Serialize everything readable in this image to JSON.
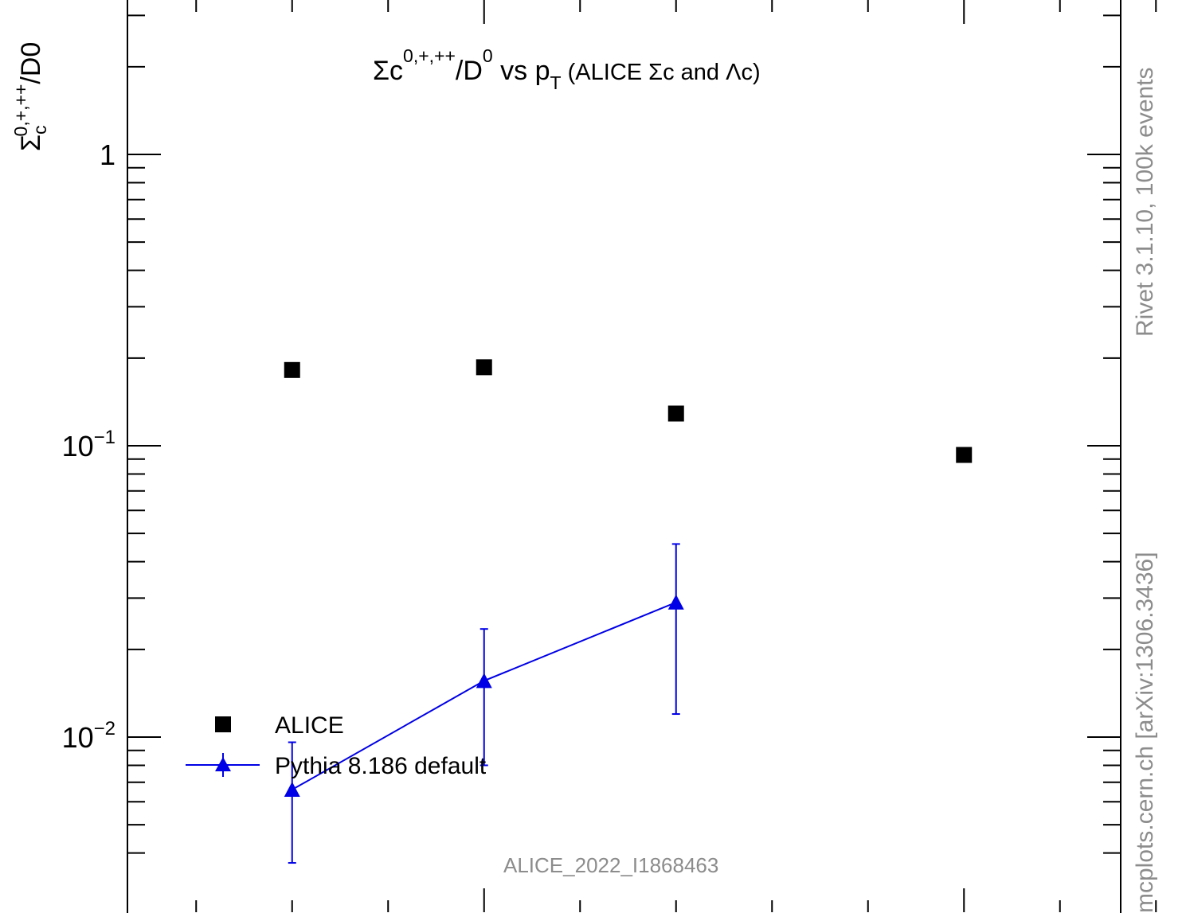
{
  "chart_data": {
    "type": "scatter",
    "title": {
      "prefix": "Σc",
      "sup1": "0,+,++",
      "mid": "/D",
      "sup2": "0",
      "vs": " vs p",
      "sub": "T",
      "suffix": " (ALICE Σc and Λc)"
    },
    "ylabel": {
      "base": "Σ",
      "sub": "c",
      "sup": "0,+,++",
      "tail": "/D0"
    },
    "yscale": "log",
    "ylim": [
      0.00305,
      3.0
    ],
    "xlim": [
      1.5,
      13.0
    ],
    "ytick_labels": [
      {
        "value": 1,
        "text": "1"
      },
      {
        "value": 0.1,
        "base": "10",
        "exp": "−1"
      },
      {
        "value": 0.01,
        "base": "10",
        "exp": "−2"
      }
    ],
    "series": [
      {
        "name": "ALICE",
        "color": "#000000",
        "marker": "square",
        "points": [
          {
            "x": 3.0,
            "y": 0.182
          },
          {
            "x": 5.0,
            "y": 0.186
          },
          {
            "x": 7.0,
            "y": 0.129
          },
          {
            "x": 10.0,
            "y": 0.093
          }
        ]
      },
      {
        "name": "Pythia 8.186 default",
        "color": "#0000e6",
        "marker": "triangle",
        "line": true,
        "points": [
          {
            "x": 3.0,
            "y": 0.0066,
            "ylo": 0.0037,
            "yhi": 0.0096
          },
          {
            "x": 5.0,
            "y": 0.0156,
            "ylo": 0.008,
            "yhi": 0.0235
          },
          {
            "x": 7.0,
            "y": 0.029,
            "ylo": 0.012,
            "yhi": 0.046
          }
        ]
      }
    ],
    "annotation": "ALICE_2022_I1868463",
    "side_label_upper": "Rivet 3.1.10,  100k events",
    "side_label_lower": "mcplots.cern.ch [arXiv:1306.3436]"
  }
}
